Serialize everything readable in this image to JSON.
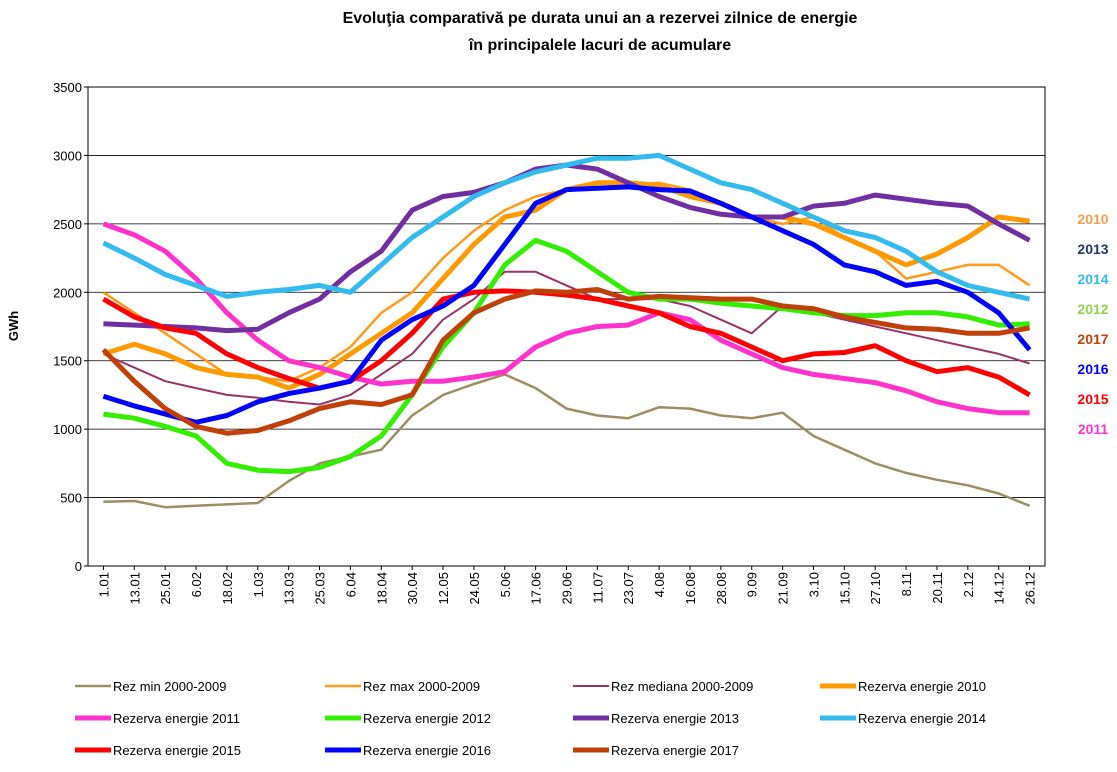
{
  "chart_data": {
    "type": "line",
    "title": [
      "Evoluţia comparativă pe durata unui an a rezervei zilnice de energie",
      "în principalele lacuri de acumulare"
    ],
    "y_label": "GWh",
    "categories": [
      "1.01",
      "13.01",
      "25.01",
      "6.02",
      "18.02",
      "1.03",
      "13.03",
      "25.03",
      "6.04",
      "18.04",
      "30.04",
      "12.05",
      "24.05",
      "5.06",
      "17.06",
      "29.06",
      "11.07",
      "23.07",
      "4.08",
      "16.08",
      "28.08",
      "9.09",
      "21.09",
      "3.10",
      "15.10",
      "27.10",
      "8.11",
      "20.11",
      "2.12",
      "14.12",
      "26.12"
    ],
    "ylim": [
      0,
      3500
    ],
    "yticks": [
      0,
      500,
      1000,
      1500,
      2000,
      2500,
      3000,
      3500
    ],
    "grid": true,
    "series": [
      {
        "name": "Rez min 2000-2009",
        "color": "#9e8c64",
        "line_width": 2.5,
        "values": [
          470,
          475,
          430,
          440,
          450,
          460,
          620,
          750,
          800,
          850,
          1100,
          1250,
          1330,
          1400,
          1300,
          1150,
          1100,
          1080,
          1160,
          1150,
          1100,
          1080,
          1120,
          950,
          850,
          750,
          680,
          630,
          590,
          530,
          440
        ]
      },
      {
        "name": "Rez max 2000-2009",
        "color": "#ff9a1a",
        "line_width": 2.5,
        "values": [
          2000,
          1850,
          1700,
          1550,
          1400,
          1380,
          1350,
          1450,
          1600,
          1850,
          2000,
          2250,
          2450,
          2600,
          2700,
          2750,
          2800,
          2780,
          2800,
          2750,
          2650,
          2550,
          2500,
          2550,
          2400,
          2300,
          2100,
          2150,
          2200,
          2200,
          2050
        ]
      },
      {
        "name": "Rez mediana 2000-2009",
        "color": "#993366",
        "line_width": 2,
        "values": [
          1550,
          1450,
          1350,
          1300,
          1250,
          1230,
          1200,
          1180,
          1250,
          1400,
          1550,
          1800,
          1950,
          2150,
          2150,
          2050,
          1950,
          1950,
          1950,
          1900,
          1800,
          1700,
          1900,
          1850,
          1800,
          1750,
          1700,
          1650,
          1600,
          1550,
          1480
        ]
      },
      {
        "name": "Rezerva energie 2010",
        "color": "#ff9900",
        "line_width": 5,
        "values": [
          1550,
          1620,
          1550,
          1450,
          1400,
          1380,
          1300,
          1400,
          1550,
          1700,
          1850,
          2100,
          2350,
          2550,
          2600,
          2750,
          2800,
          2800,
          2780,
          2700,
          2650,
          2550,
          2550,
          2500,
          2400,
          2300,
          2200,
          2280,
          2400,
          2550,
          2520
        ]
      },
      {
        "name": "Rezerva energie 2011",
        "color": "#ff33cc",
        "line_width": 5,
        "values": [
          2500,
          2420,
          2300,
          2100,
          1850,
          1650,
          1500,
          1450,
          1380,
          1330,
          1350,
          1350,
          1380,
          1420,
          1600,
          1700,
          1750,
          1760,
          1850,
          1800,
          1650,
          1550,
          1450,
          1400,
          1370,
          1340,
          1280,
          1200,
          1150,
          1120,
          1120
        ]
      },
      {
        "name": "Rezerva energie 2012",
        "color": "#33ee00",
        "line_width": 5,
        "values": [
          1110,
          1080,
          1020,
          950,
          750,
          700,
          690,
          720,
          800,
          950,
          1250,
          1600,
          1850,
          2200,
          2380,
          2300,
          2150,
          2000,
          1950,
          1950,
          1920,
          1900,
          1880,
          1850,
          1830,
          1830,
          1850,
          1850,
          1820,
          1760,
          1770
        ]
      },
      {
        "name": "Rezerva energie 2013",
        "color": "#7030a0",
        "line_width": 5,
        "values": [
          1770,
          1760,
          1750,
          1740,
          1720,
          1730,
          1850,
          1950,
          2150,
          2300,
          2600,
          2700,
          2730,
          2800,
          2900,
          2930,
          2900,
          2800,
          2700,
          2620,
          2570,
          2550,
          2550,
          2630,
          2650,
          2710,
          2680,
          2650,
          2630,
          2500,
          2380
        ]
      },
      {
        "name": "Rezerva energie 2014",
        "color": "#33bbee",
        "line_width": 5,
        "values": [
          2360,
          2250,
          2130,
          2050,
          1970,
          2000,
          2020,
          2050,
          2000,
          2200,
          2400,
          2550,
          2700,
          2800,
          2880,
          2930,
          2980,
          2980,
          3000,
          2900,
          2800,
          2750,
          2650,
          2550,
          2450,
          2400,
          2300,
          2150,
          2050,
          2000,
          1950
        ]
      },
      {
        "name": "Rezerva energie 2015",
        "color": "#ff0000",
        "line_width": 5,
        "values": [
          1950,
          1820,
          1740,
          1700,
          1550,
          1450,
          1370,
          1300,
          1350,
          1500,
          1700,
          1950,
          2000,
          2010,
          2000,
          1980,
          1950,
          1900,
          1850,
          1750,
          1700,
          1600,
          1500,
          1550,
          1560,
          1610,
          1500,
          1420,
          1450,
          1380,
          1250
        ]
      },
      {
        "name": "Rezerva energie 2016",
        "color": "#0000ff",
        "line_width": 5,
        "values": [
          1240,
          1170,
          1110,
          1050,
          1100,
          1200,
          1260,
          1300,
          1350,
          1650,
          1800,
          1900,
          2050,
          2350,
          2650,
          2750,
          2760,
          2770,
          2750,
          2740,
          2650,
          2550,
          2450,
          2350,
          2200,
          2150,
          2050,
          2080,
          2000,
          1850,
          1580
        ]
      },
      {
        "name": "Rezerva energie 2017",
        "color": "#c0400a",
        "line_width": 5,
        "values": [
          1580,
          1350,
          1150,
          1020,
          970,
          990,
          1060,
          1150,
          1200,
          1180,
          1250,
          1650,
          1850,
          1950,
          2010,
          2000,
          2020,
          1950,
          1970,
          1960,
          1950,
          1950,
          1900,
          1880,
          1820,
          1780,
          1740,
          1730,
          1700,
          1700,
          1740
        ]
      }
    ],
    "annotations": [
      {
        "text": "2010",
        "color": "#f0a050"
      },
      {
        "text": "2013",
        "color": "#1f3864"
      },
      {
        "text": "2014",
        "color": "#33bbee"
      },
      {
        "text": "2012",
        "color": "#92d050"
      },
      {
        "text": "2017",
        "color": "#c0400a"
      },
      {
        "text": "2016",
        "color": "#0000ff"
      },
      {
        "text": "2015",
        "color": "#ff0000"
      },
      {
        "text": "2011",
        "color": "#ff33cc"
      }
    ]
  }
}
